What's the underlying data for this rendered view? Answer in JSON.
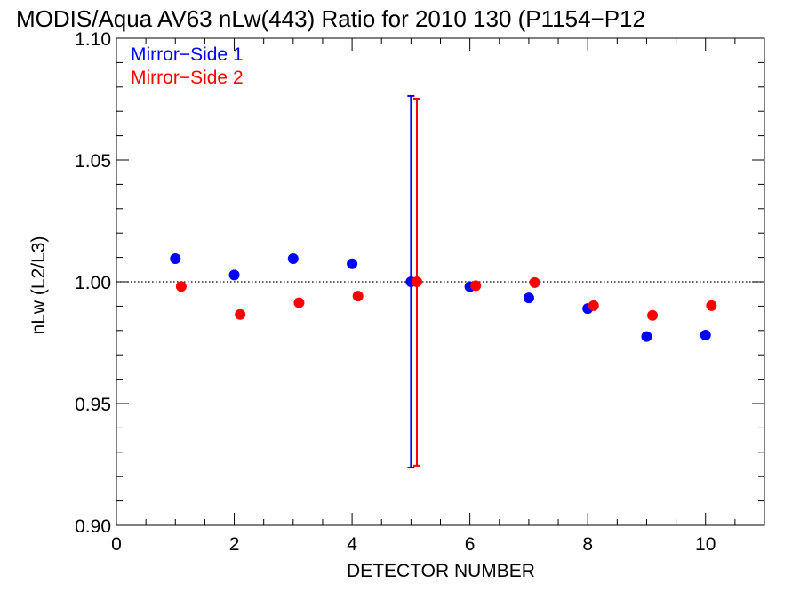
{
  "chart_data": {
    "type": "scatter",
    "title": "MODIS/Aqua AV63 nLw(443) Ratio for 2010 130 (P1154−P12",
    "xlabel": "DETECTOR NUMBER",
    "ylabel": "nLw (L2/L3)",
    "xlim": [
      0,
      11
    ],
    "ylim": [
      0.9,
      1.1
    ],
    "xticks": [
      0,
      2,
      4,
      6,
      8,
      10
    ],
    "xtick_labels": [
      "0",
      "2",
      "4",
      "6",
      "8",
      "10"
    ],
    "yticks": [
      0.9,
      0.95,
      1.0,
      1.05,
      1.1
    ],
    "ytick_labels": [
      "0.90",
      "0.95",
      "1.00",
      "1.05",
      "1.10"
    ],
    "reference_line": 1.0,
    "legend_position": "top-left",
    "series": [
      {
        "name": "Mirror−Side 1",
        "color": "#0000ff",
        "x": [
          1,
          2,
          3,
          4,
          5,
          6,
          7,
          8,
          9,
          10
        ],
        "y": [
          1.0095,
          1.0028,
          1.0095,
          1.0074,
          1.0,
          0.998,
          0.9934,
          0.989,
          0.9775,
          0.9781
        ],
        "error_bar": {
          "x": 5,
          "low": 0.9237,
          "high": 1.0763
        }
      },
      {
        "name": "Mirror−Side 2",
        "color": "#ff0000",
        "x": [
          1.1,
          2.1,
          3.1,
          4.1,
          5.1,
          6.1,
          7.1,
          8.1,
          9.1,
          10.1
        ],
        "y": [
          0.9981,
          0.9866,
          0.9914,
          0.9941,
          1.0,
          0.9984,
          0.9997,
          0.9902,
          0.9862,
          0.9902
        ],
        "error_bar": {
          "x": 5.1,
          "low": 0.9245,
          "high": 1.0752
        }
      }
    ]
  }
}
